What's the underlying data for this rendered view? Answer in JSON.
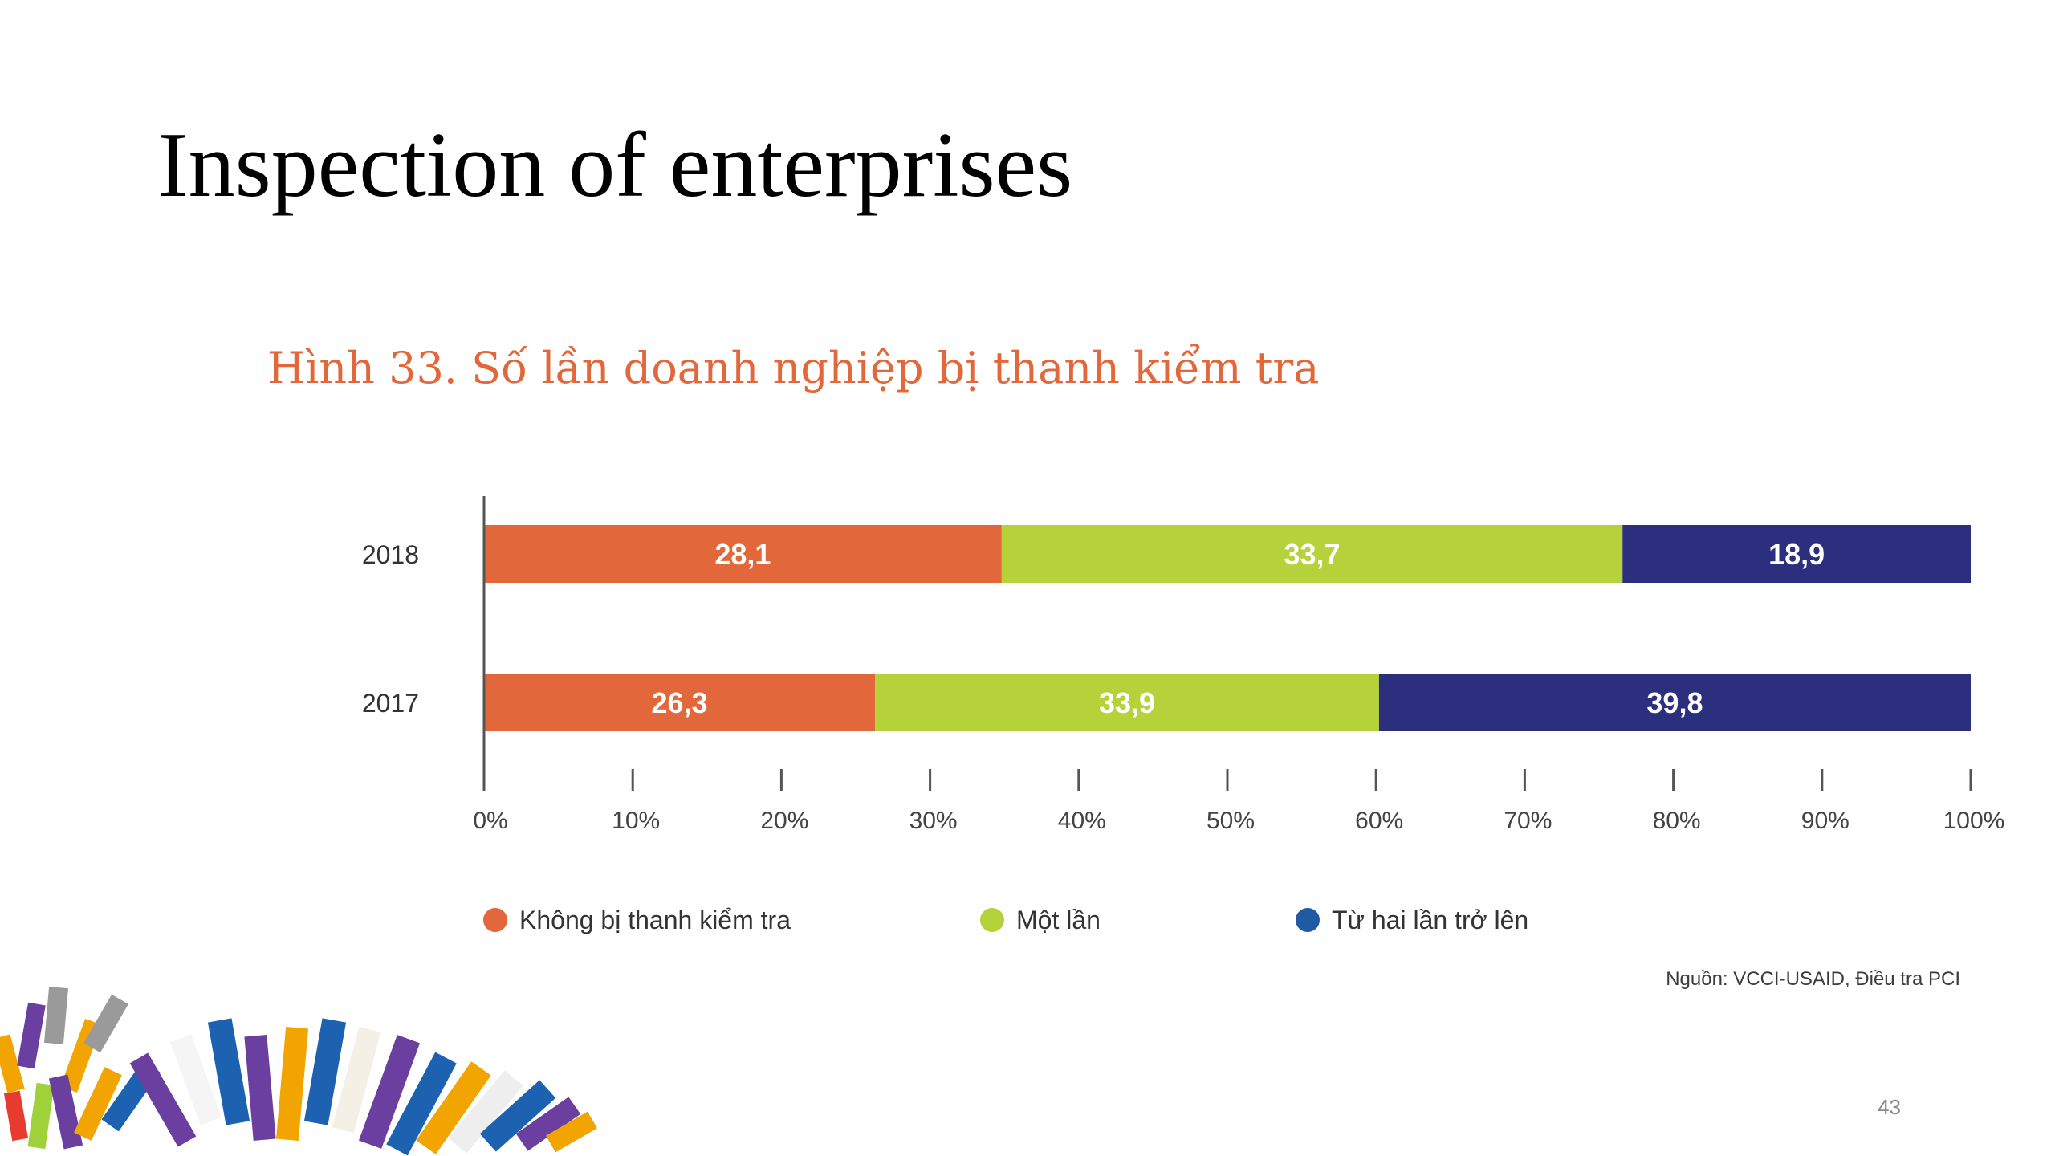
{
  "slide": {
    "title": "Inspection of enterprises",
    "page_number": "43"
  },
  "figure": {
    "title": "Hình 33. Số lần doanh nghiệp bị thanh kiểm tra",
    "source": "Nguồn: VCCI-USAID, Điều tra PCI"
  },
  "colors": {
    "orange": "#e2673a",
    "green": "#b6d23a",
    "navy": "#2b2f7e",
    "legend_blue": "#1f5aa3"
  },
  "chart_data": {
    "type": "bar",
    "orientation": "horizontal",
    "stacked": true,
    "title": "Hình 33. Số lần doanh nghiệp bị thanh kiểm tra",
    "categories": [
      "2018",
      "2017"
    ],
    "series": [
      {
        "name": "Không bị thanh kiểm tra",
        "values": [
          28.1,
          26.3
        ],
        "labels": [
          "28,1",
          "26,3"
        ],
        "color": "#e2673a",
        "legend_color": "#e2673a"
      },
      {
        "name": "Một lần",
        "values": [
          33.7,
          33.9
        ],
        "labels": [
          "33,7",
          "33,9"
        ],
        "color": "#b6d23a",
        "legend_color": "#b6d23a"
      },
      {
        "name": "Từ hai lần trở lên",
        "values": [
          18.9,
          39.8
        ],
        "labels": [
          "18,9",
          "39,8"
        ],
        "color": "#2b2f7e",
        "legend_color": "#1f5aa3"
      }
    ],
    "xlim": [
      0,
      100
    ],
    "xticks": [
      "0%",
      "10%",
      "20%",
      "30%",
      "40%",
      "50%",
      "60%",
      "70%",
      "80%",
      "90%",
      "100%"
    ],
    "legend_position": "bottom",
    "grid": false
  }
}
